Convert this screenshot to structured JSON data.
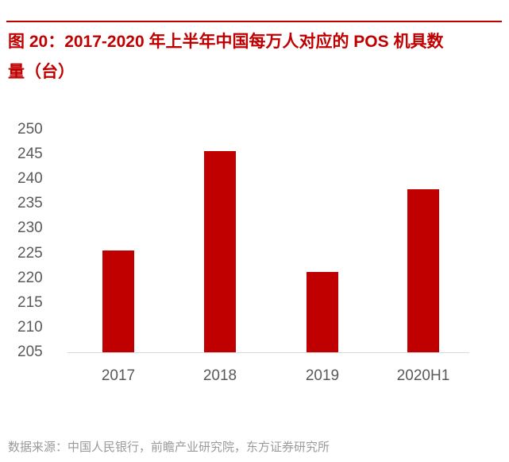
{
  "figure": {
    "title_line1": "图 20：2017-2020 年上半年中国每万人对应的 POS 机具数",
    "title_line2": "量（台）",
    "source": "数据来源：中国人民银行，前瞻产业研究院，东方证券研究所",
    "accent_color": "#c00000"
  },
  "chart_data": {
    "type": "bar",
    "title": "2017-2020 年上半年中国每万人对应的 POS 机具数量（台）",
    "xlabel": "",
    "ylabel": "",
    "categories": [
      "2017",
      "2018",
      "2019",
      "2020H1"
    ],
    "values": [
      225.6,
      245.6,
      221.3,
      237.9
    ],
    "ylim": [
      205,
      250
    ],
    "yticks": [
      "250",
      "245",
      "240",
      "235",
      "230",
      "225",
      "220",
      "215",
      "210",
      "205"
    ],
    "grid": false,
    "legend": null,
    "bar_color": "#c00000"
  }
}
